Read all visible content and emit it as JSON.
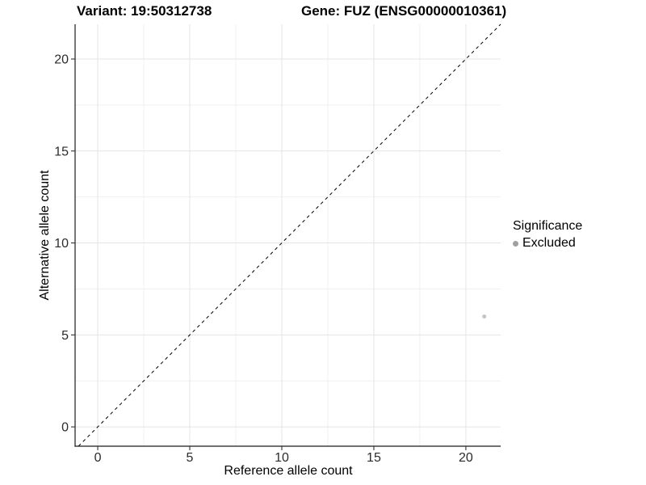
{
  "title": {
    "variant": "Variant: 19:50312738",
    "gene": "Gene: FUZ (ENSG00000010361)"
  },
  "axes": {
    "x_label": "Reference allele count",
    "y_label": "Alternative allele count"
  },
  "legend": {
    "title": "Significance",
    "items": [
      {
        "label": "Excluded",
        "color": "#a0a0a0"
      }
    ]
  },
  "colors": {
    "background": "#ffffff",
    "grid_major": "#e4e4e4",
    "grid_minor": "#f0f0f0",
    "axis_line": "#1a1a1a",
    "tick_mark": "#333333",
    "tick_label": "#2b2b2b",
    "identity_line": "#000000",
    "point_excluded": "#c5c5c5"
  },
  "chart_data": {
    "type": "scatter",
    "title": "Variant: 19:50312738   Gene: FUZ (ENSG00000010361)",
    "xlabel": "Reference allele count",
    "ylabel": "Alternative allele count",
    "xlim": [
      -1.23,
      21.89
    ],
    "ylim": [
      -1.05,
      21.89
    ],
    "x_ticks": [
      0,
      5,
      10,
      15,
      20
    ],
    "y_ticks": [
      0,
      5,
      10,
      15,
      20
    ],
    "x_minor_ticks": [
      2.5,
      7.5,
      12.5,
      17.5
    ],
    "y_minor_ticks": [
      2.5,
      7.5,
      12.5,
      17.5
    ],
    "grid": true,
    "legend_position": "right",
    "series": [
      {
        "name": "Excluded",
        "color": "#c5c5c5",
        "point_radius": 2.5,
        "points": [
          {
            "x": 21,
            "y": 6
          }
        ]
      }
    ],
    "reference_line": {
      "type": "identity",
      "slope": 1,
      "intercept": 0,
      "style": "dashed",
      "color": "#000000"
    }
  }
}
